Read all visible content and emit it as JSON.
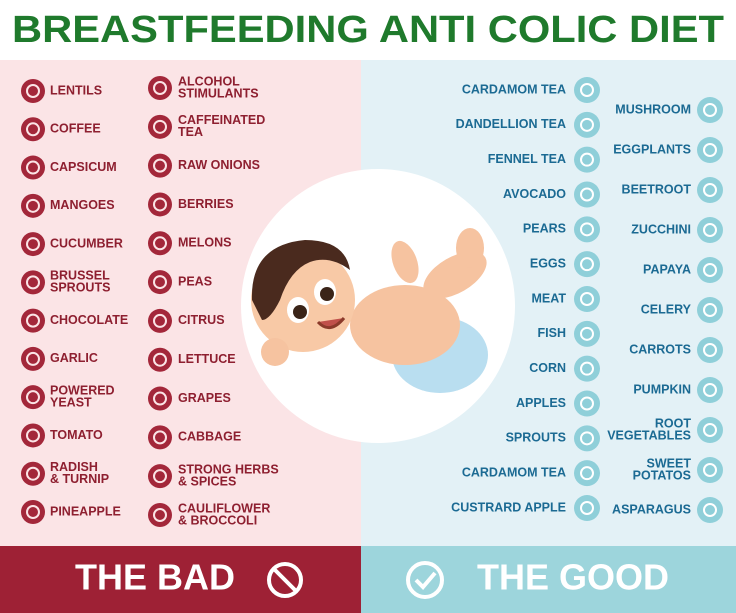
{
  "header": {
    "title": "BREASTFEEDING ANTI COLIC DIET"
  },
  "bad": {
    "label": "THE BAD",
    "column_1": [
      [
        "LENTILS"
      ],
      [
        "COFFEE"
      ],
      [
        "CAPSICUM"
      ],
      [
        "MANGOES"
      ],
      [
        "CUCUMBER"
      ],
      [
        "BRUSSEL",
        "SPROUTS"
      ],
      [
        "CHOCOLATE"
      ],
      [
        "GARLIC"
      ],
      [
        "POWERED",
        "YEAST"
      ],
      [
        "TOMATO"
      ],
      [
        "RADISH",
        "& TURNIP"
      ],
      [
        "PINEAPPLE"
      ]
    ],
    "column_2": [
      [
        "ALCOHOL",
        "STIMULANTS"
      ],
      [
        "CAFFEINATED",
        "TEA"
      ],
      [
        "RAW ONIONS"
      ],
      [
        "BERRIES"
      ],
      [
        "MELONS"
      ],
      [
        "PEAS"
      ],
      [
        "CITRUS"
      ],
      [
        "LETTUCE"
      ],
      [
        "GRAPES"
      ],
      [
        "CABBAGE"
      ],
      [
        "STRONG HERBS",
        "& SPICES"
      ],
      [
        "CAULIFLOWER",
        "& BROCCOLI"
      ]
    ]
  },
  "good": {
    "label": "THE GOOD",
    "column_1": [
      [
        "CARDAMOM TEA"
      ],
      [
        "DANDELLION TEA"
      ],
      [
        "FENNEL TEA"
      ],
      [
        "AVOCADO"
      ],
      [
        "PEARS"
      ],
      [
        "EGGS"
      ],
      [
        "MEAT"
      ],
      [
        "FISH"
      ],
      [
        "CORN"
      ],
      [
        "APPLES"
      ],
      [
        "SPROUTS"
      ],
      [
        "CARDAMOM TEA"
      ],
      [
        "CUSTRARD APPLE"
      ]
    ],
    "column_2": [
      [
        "MUSHROOM"
      ],
      [
        "EGGPLANTS"
      ],
      [
        "BEETROOT"
      ],
      [
        "ZUCCHINI"
      ],
      [
        "PAPAYA"
      ],
      [
        "CELERY"
      ],
      [
        "CARROTS"
      ],
      [
        "PUMPKIN"
      ],
      [
        "ROOT",
        "VEGETABLES"
      ],
      [
        "SWEET",
        "POTATOS"
      ],
      [
        "ASPARAGUS"
      ]
    ]
  }
}
